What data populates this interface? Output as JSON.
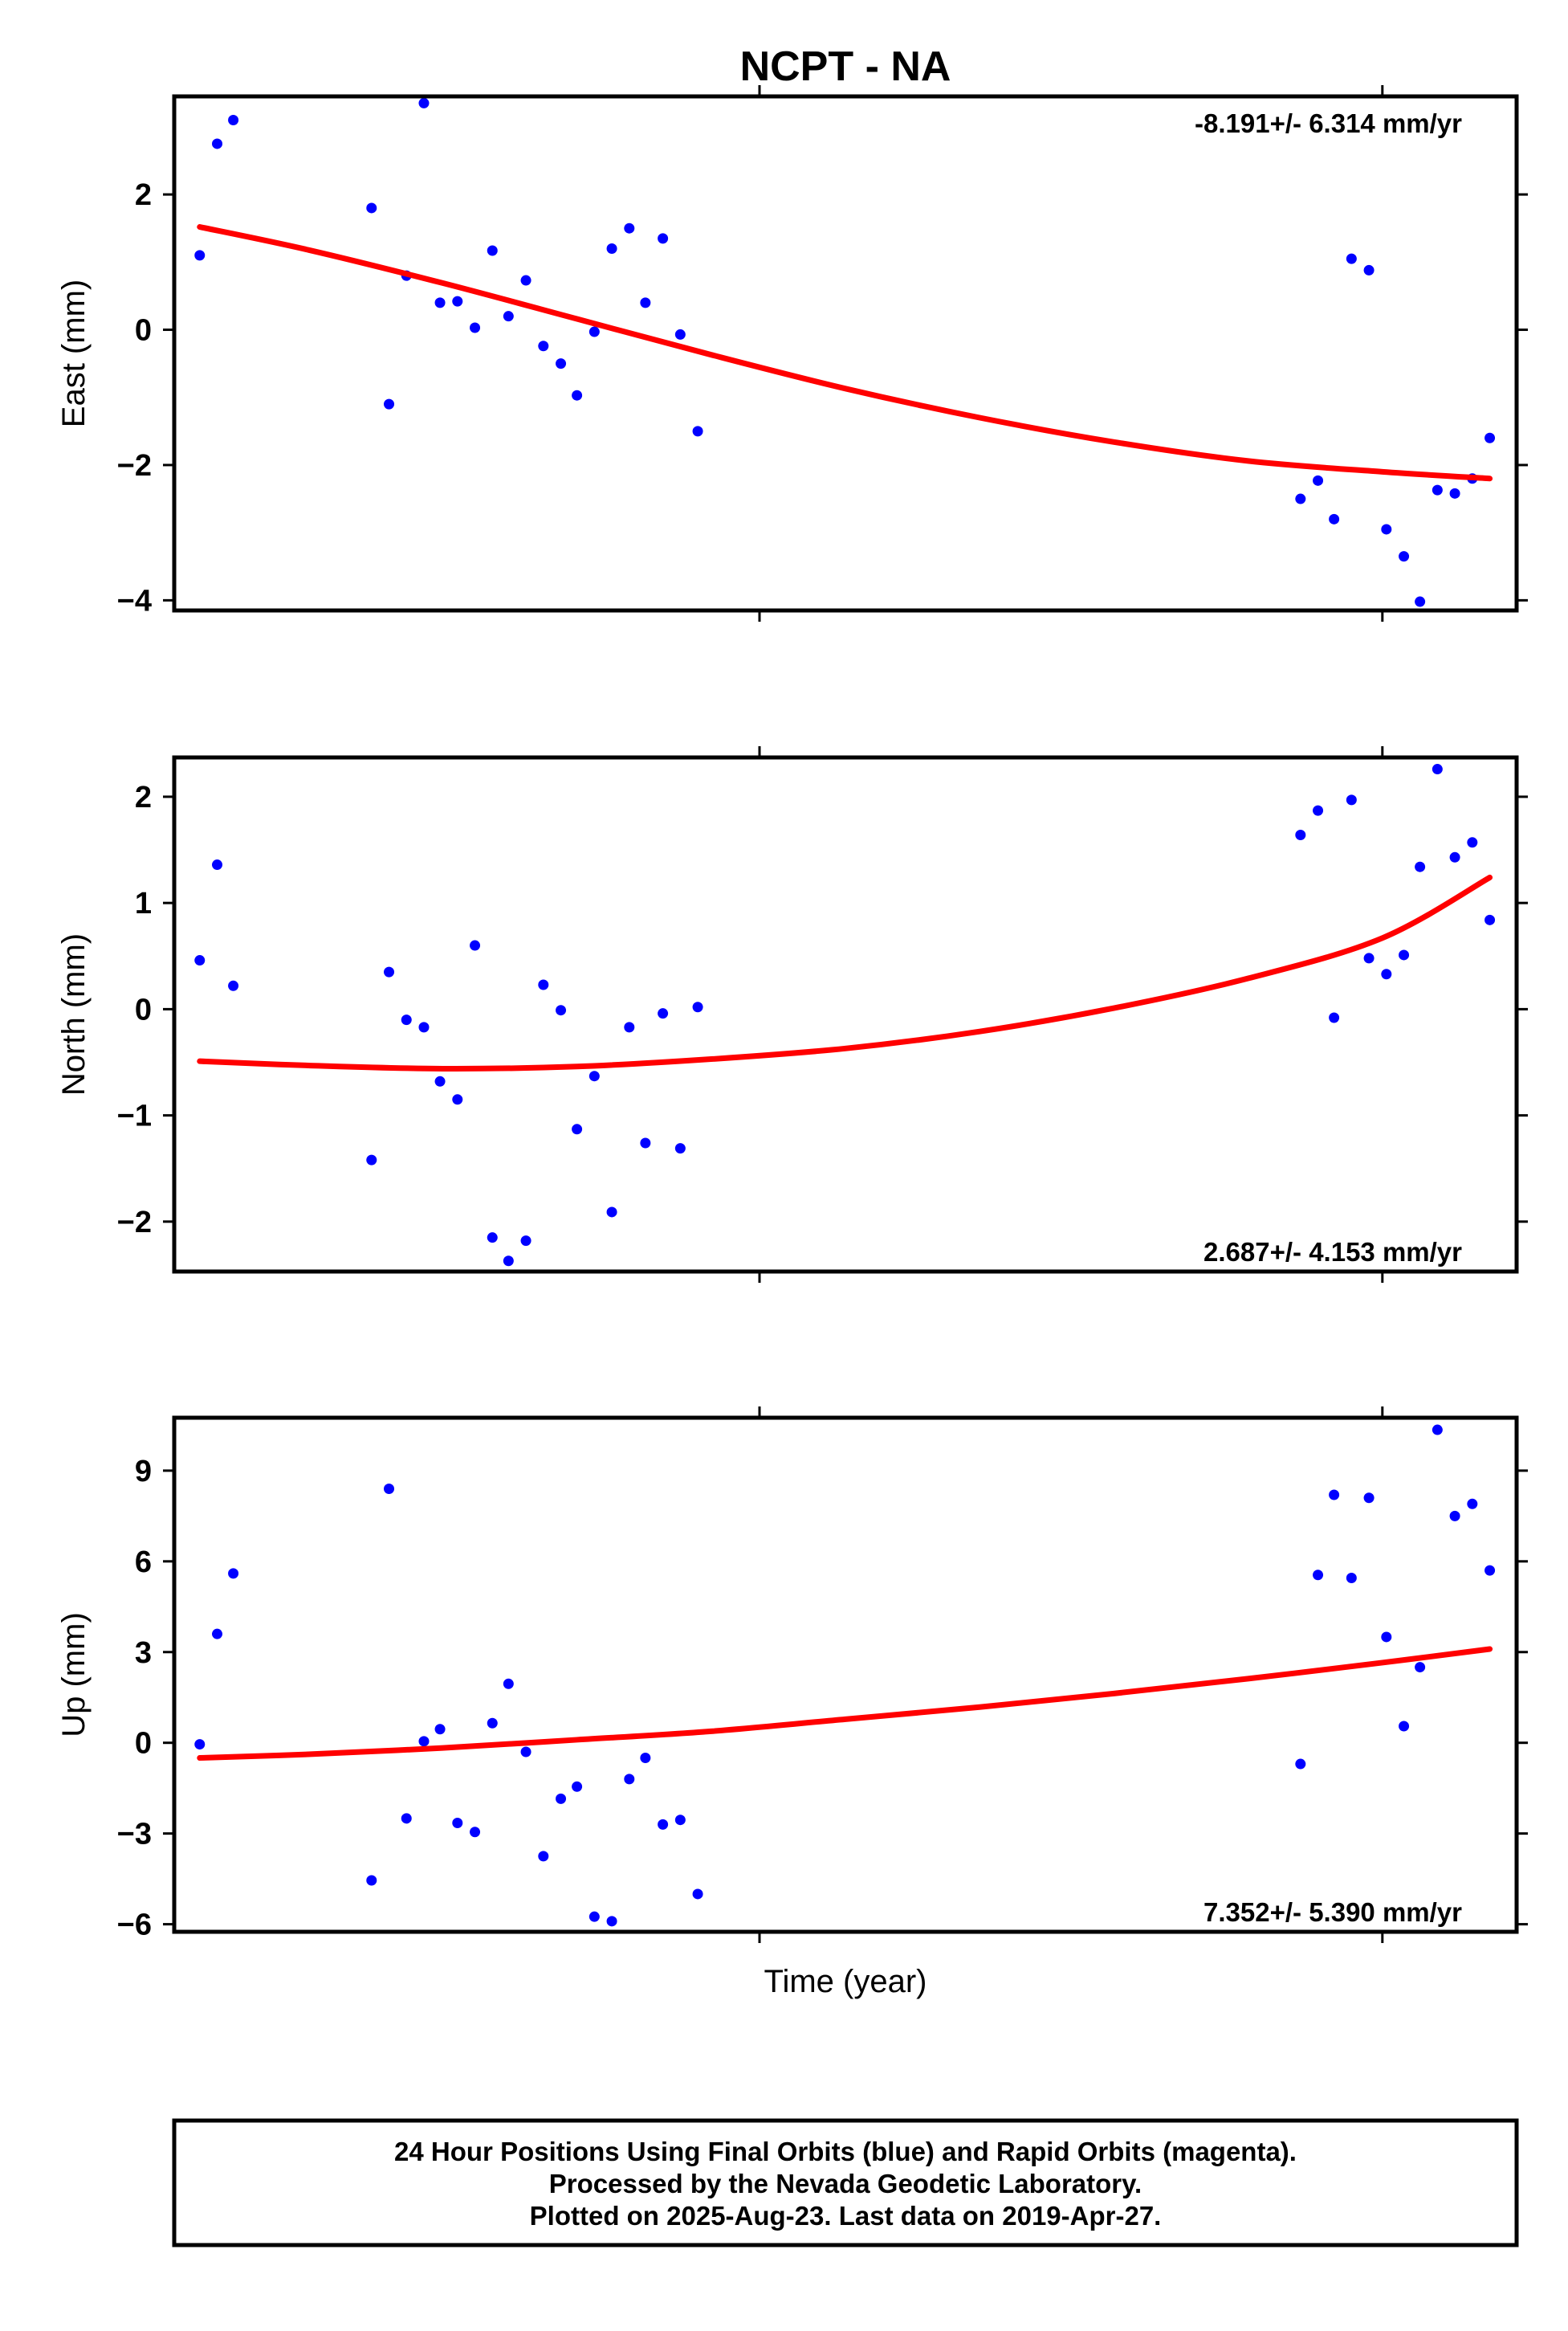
{
  "chart_data": [
    {
      "type": "scatter",
      "title": "NCPT - NA",
      "xlabel": "",
      "ylabel": "East (mm)",
      "ylim": [
        -4.15,
        3.45
      ],
      "yticks": [
        -4,
        -2,
        0,
        2
      ],
      "ytick_labels": [
        "−4",
        "−2",
        "0",
        "2"
      ],
      "xlim": [
        0,
        1
      ],
      "x_tick_positions": [
        0.436,
        0.9
      ],
      "rate_text": "-8.191+/- 6.314 mm/yr",
      "rate_position": "top-right",
      "grid": false,
      "series": [
        {
          "kind": "points",
          "color": "#0000ff",
          "x": [
            0.019,
            0.032,
            0.044,
            0.147,
            0.16,
            0.173,
            0.186,
            0.198,
            0.211,
            0.224,
            0.237,
            0.249,
            0.262,
            0.275,
            0.288,
            0.3,
            0.313,
            0.326,
            0.339,
            0.351,
            0.364,
            0.377,
            0.39,
            0.839,
            0.852,
            0.864,
            0.877,
            0.89,
            0.903,
            0.916,
            0.928,
            0.941,
            0.954,
            0.967,
            0.98
          ],
          "y": [
            1.1,
            2.75,
            3.1,
            1.8,
            -1.1,
            0.8,
            3.35,
            0.4,
            0.42,
            0.03,
            1.17,
            0.2,
            0.73,
            -0.24,
            -0.5,
            -0.97,
            -0.03,
            1.2,
            1.5,
            0.4,
            1.35,
            -0.07,
            -1.5,
            -2.5,
            -2.23,
            -2.8,
            1.05,
            0.88,
            -2.95,
            -3.35,
            -4.02,
            -2.37,
            -2.42,
            -2.2,
            -1.6
          ]
        },
        {
          "kind": "line",
          "color": "#ff0000",
          "x": [
            0.019,
            0.1,
            0.2,
            0.3,
            0.4,
            0.5,
            0.6,
            0.7,
            0.8,
            0.9,
            0.98
          ],
          "y": [
            1.52,
            1.18,
            0.69,
            0.16,
            -0.37,
            -0.87,
            -1.3,
            -1.66,
            -1.94,
            -2.1,
            -2.2
          ]
        }
      ]
    },
    {
      "type": "scatter",
      "xlabel": "",
      "ylabel": "North (mm)",
      "ylim": [
        -2.47,
        2.37
      ],
      "yticks": [
        -2,
        -1,
        0,
        1,
        2
      ],
      "ytick_labels": [
        "−2",
        "−1",
        "0",
        "1",
        "2"
      ],
      "xlim": [
        0,
        1
      ],
      "x_tick_positions": [
        0.436,
        0.9
      ],
      "rate_text": "2.687+/- 4.153 mm/yr",
      "rate_position": "bottom-right",
      "grid": false,
      "series": [
        {
          "kind": "points",
          "color": "#0000ff",
          "x": [
            0.019,
            0.032,
            0.044,
            0.147,
            0.16,
            0.173,
            0.186,
            0.198,
            0.211,
            0.224,
            0.237,
            0.249,
            0.262,
            0.275,
            0.288,
            0.3,
            0.313,
            0.326,
            0.339,
            0.351,
            0.364,
            0.377,
            0.39,
            0.839,
            0.852,
            0.864,
            0.877,
            0.89,
            0.903,
            0.916,
            0.928,
            0.941,
            0.954,
            0.967,
            0.98
          ],
          "y": [
            0.46,
            1.36,
            0.22,
            -1.42,
            0.35,
            -0.1,
            -0.17,
            -0.68,
            -0.85,
            0.6,
            -2.15,
            -2.37,
            -2.18,
            0.23,
            -0.01,
            -1.13,
            -0.63,
            -1.91,
            -0.17,
            -1.26,
            -0.04,
            -1.31,
            0.02,
            1.64,
            1.87,
            -0.08,
            1.97,
            0.48,
            0.33,
            0.51,
            1.34,
            2.26,
            1.43,
            1.57,
            0.84
          ]
        },
        {
          "kind": "line",
          "color": "#ff0000",
          "x": [
            0.019,
            0.1,
            0.2,
            0.3,
            0.4,
            0.5,
            0.6,
            0.7,
            0.8,
            0.9,
            0.98
          ],
          "y": [
            -0.49,
            -0.53,
            -0.56,
            -0.54,
            -0.47,
            -0.37,
            -0.21,
            0.01,
            0.29,
            0.67,
            1.24
          ]
        }
      ]
    },
    {
      "type": "scatter",
      "xlabel": "Time (year)",
      "ylabel": "Up (mm)",
      "ylim": [
        -6.25,
        10.75
      ],
      "yticks": [
        -6,
        -3,
        0,
        3,
        6,
        9
      ],
      "ytick_labels": [
        "−6",
        "−3",
        "0",
        "3",
        "6",
        "9"
      ],
      "xlim": [
        0,
        1
      ],
      "x_tick_positions": [
        0.436,
        0.9
      ],
      "rate_text": "7.352+/- 5.390 mm/yr",
      "rate_position": "bottom-right",
      "grid": false,
      "series": [
        {
          "kind": "points",
          "color": "#0000ff",
          "x": [
            0.019,
            0.032,
            0.044,
            0.147,
            0.16,
            0.173,
            0.186,
            0.198,
            0.211,
            0.224,
            0.237,
            0.249,
            0.262,
            0.275,
            0.288,
            0.3,
            0.313,
            0.326,
            0.339,
            0.351,
            0.364,
            0.377,
            0.39,
            0.839,
            0.852,
            0.864,
            0.877,
            0.89,
            0.903,
            0.916,
            0.928,
            0.941,
            0.954,
            0.967,
            0.98
          ],
          "y": [
            -0.05,
            3.6,
            5.6,
            -4.55,
            8.4,
            -2.5,
            0.05,
            0.45,
            -2.65,
            -2.95,
            0.65,
            1.95,
            -0.3,
            -3.75,
            -1.85,
            -1.45,
            -5.75,
            -5.9,
            -1.2,
            -0.5,
            -2.7,
            -2.55,
            -5.0,
            -0.7,
            5.55,
            8.2,
            5.45,
            8.1,
            3.5,
            0.55,
            2.5,
            10.35,
            7.5,
            7.9,
            5.7
          ]
        },
        {
          "kind": "line",
          "color": "#ff0000",
          "x": [
            0.019,
            0.1,
            0.2,
            0.3,
            0.4,
            0.5,
            0.6,
            0.7,
            0.8,
            0.9,
            0.98
          ],
          "y": [
            -0.5,
            -0.38,
            -0.17,
            0.1,
            0.38,
            0.78,
            1.18,
            1.63,
            2.12,
            2.65,
            3.1
          ]
        }
      ]
    }
  ],
  "footer": {
    "line1": "24 Hour Positions Using Final Orbits (blue) and Rapid Orbits (magenta).",
    "line2": "Processed by the Nevada Geodetic Laboratory.",
    "line3": "Plotted on 2025-Aug-23. Last data on 2019-Apr-27."
  }
}
